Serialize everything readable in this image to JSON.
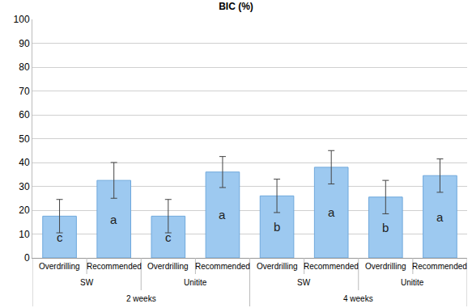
{
  "chart_data": {
    "type": "bar",
    "title": "BIC (%)",
    "categories": [
      "Overdrilling",
      "Recommended",
      "Overdrilling",
      "Recommended",
      "Overdrilling",
      "Recommended",
      "Overdrilling",
      "Recommended"
    ],
    "subgroups": [
      "SW",
      "SW",
      "Unitite",
      "Unitite",
      "SW",
      "SW",
      "Unitite",
      "Unitite"
    ],
    "groups": [
      "2 weeks",
      "2 weeks",
      "2 weeks",
      "2 weeks",
      "4 weeks",
      "4 weeks",
      "4 weeks",
      "4 weeks"
    ],
    "values": [
      17.5,
      32.5,
      17.5,
      36,
      26,
      38,
      25.5,
      34.5
    ],
    "errors": [
      7,
      7.5,
      7,
      6.5,
      7,
      7,
      7,
      7
    ],
    "annotations": [
      "c",
      "a",
      "c",
      "a",
      "b",
      "a",
      "b",
      "a"
    ],
    "color": "#9dc9f0",
    "ylim": [
      0,
      100
    ],
    "yticks": [
      0,
      10,
      20,
      30,
      40,
      50,
      60,
      70,
      80,
      90,
      100
    ],
    "grid": true
  }
}
